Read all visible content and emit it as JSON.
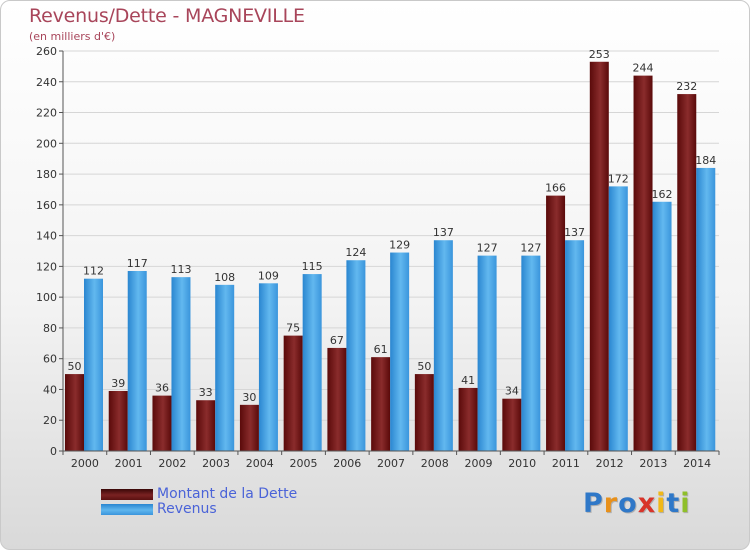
{
  "title": "Revenus/Dette - MAGNEVILLE",
  "subtitle": "(en milliers d'€)",
  "legend": {
    "debt_label": "Montant de la Dette",
    "revenue_label": "Revenus"
  },
  "logo": {
    "text": "Proxiti",
    "letters": [
      {
        "ch": "P",
        "color": "#2f78c8"
      },
      {
        "ch": "r",
        "color": "#e8901a"
      },
      {
        "ch": "o",
        "color": "#2f78c8"
      },
      {
        "ch": "x",
        "color": "#d8342a"
      },
      {
        "ch": "i",
        "color": "#f0b818"
      },
      {
        "ch": "t",
        "color": "#2f78c8"
      },
      {
        "ch": "i",
        "color": "#8fbf2a"
      }
    ]
  },
  "colors": {
    "debt_dark": "#5a0a0a",
    "debt_light": "#8a2c2c",
    "revenue_dark": "#2a86d0",
    "revenue_light": "#62b8ef",
    "grid": "#d6d6d6",
    "axis_text": "#333333"
  },
  "chart_data": {
    "type": "bar",
    "title": "Revenus/Dette - MAGNEVILLE",
    "subtitle": "(en milliers d'€)",
    "categories": [
      "2000",
      "2001",
      "2002",
      "2003",
      "2004",
      "2005",
      "2006",
      "2007",
      "2008",
      "2009",
      "2010",
      "2011",
      "2012",
      "2013",
      "2014"
    ],
    "series": [
      {
        "name": "Montant de la Dette",
        "values": [
          50,
          39,
          36,
          33,
          30,
          75,
          67,
          61,
          50,
          41,
          34,
          166,
          253,
          244,
          232
        ]
      },
      {
        "name": "Revenus",
        "values": [
          112,
          117,
          113,
          108,
          109,
          115,
          124,
          129,
          137,
          127,
          127,
          137,
          172,
          162,
          184
        ]
      }
    ],
    "ylim": [
      0,
      260
    ],
    "yticks": [
      0,
      20,
      40,
      60,
      80,
      100,
      120,
      140,
      160,
      180,
      200,
      220,
      240,
      260
    ],
    "grid": true,
    "legend_position": "bottom-left"
  }
}
